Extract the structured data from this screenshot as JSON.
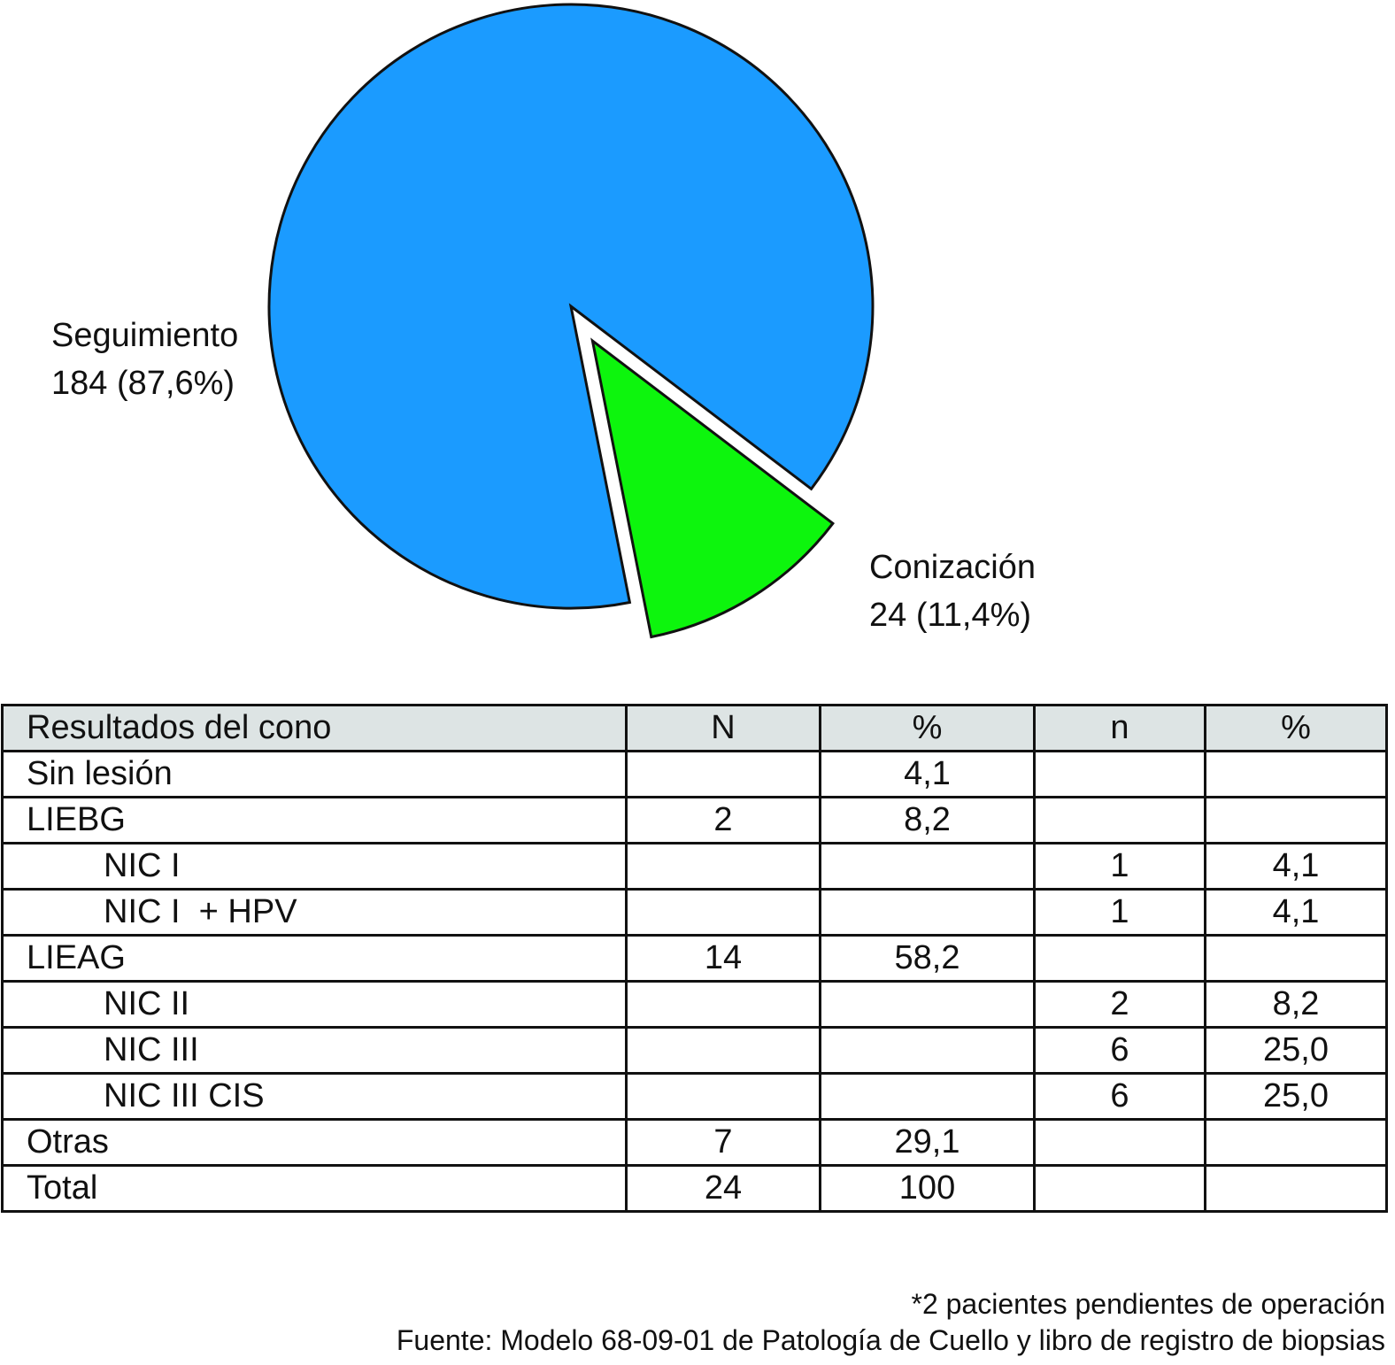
{
  "chart_data": [
    {
      "type": "pie",
      "slices": [
        {
          "label": "Seguimiento",
          "value": 184,
          "percent": 87.6,
          "value_text": "184 (87,6%)",
          "color": "#1b9bff",
          "exploded": false
        },
        {
          "label": "Conización",
          "value": 24,
          "percent": 11.4,
          "value_text": "24 (11,4%)",
          "color": "#0df50d",
          "exploded": true
        }
      ]
    },
    {
      "type": "table",
      "columns": [
        "Resultados del cono",
        "N",
        "%",
        "n",
        "%"
      ],
      "rows": [
        {
          "label": "Sin lesión",
          "indent": false,
          "cells": [
            "",
            "4,1",
            "",
            ""
          ]
        },
        {
          "label": "LIEBG",
          "indent": false,
          "cells": [
            "2",
            "8,2",
            "",
            ""
          ]
        },
        {
          "label": "NIC I",
          "indent": true,
          "cells": [
            "",
            "",
            "1",
            "4,1"
          ]
        },
        {
          "label": "NIC I  + HPV",
          "indent": true,
          "cells": [
            "",
            "",
            "1",
            "4,1"
          ]
        },
        {
          "label": "LIEAG",
          "indent": false,
          "cells": [
            "14",
            "58,2",
            "",
            ""
          ]
        },
        {
          "label": "NIC II",
          "indent": true,
          "cells": [
            "",
            "",
            "2",
            "8,2"
          ]
        },
        {
          "label": "NIC III",
          "indent": true,
          "cells": [
            "",
            "",
            "6",
            "25,0"
          ]
        },
        {
          "label": "NIC III CIS",
          "indent": true,
          "cells": [
            "",
            "",
            "6",
            "25,0"
          ]
        },
        {
          "label": "Otras",
          "indent": false,
          "cells": [
            "7",
            "29,1",
            "",
            ""
          ]
        },
        {
          "label": "Total",
          "indent": false,
          "cells": [
            "24",
            "100",
            "",
            ""
          ]
        }
      ]
    }
  ],
  "footnotes": {
    "note": "*2 pacientes pendientes de operación",
    "source": "Fuente: Modelo 68-09-01 de Patología de Cuello y libro de registro de biopsias"
  }
}
